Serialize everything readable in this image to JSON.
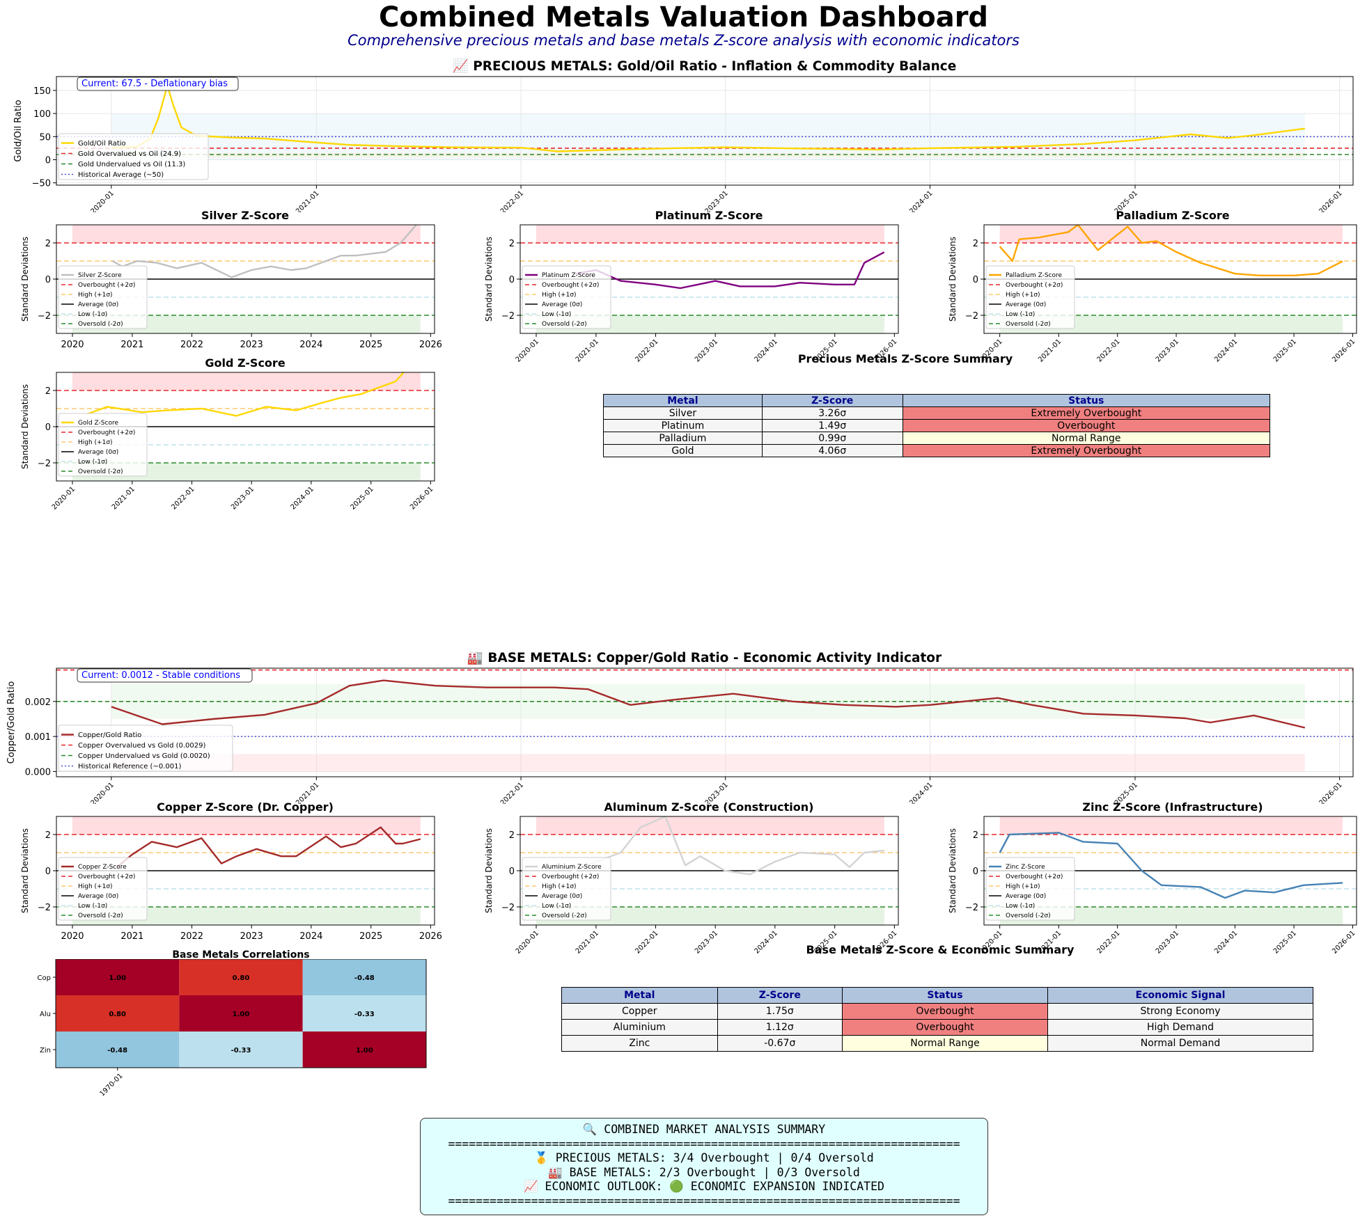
{
  "header": {
    "title": "Combined Metals Valuation Dashboard",
    "subtitle": "Comprehensive precious metals and base metals Z-score analysis with economic indicators"
  },
  "colors": {
    "gold": "#ffd700",
    "silver": "#c0c0c0",
    "platinum": "#800080",
    "palladium": "#ffa500",
    "copper": "#a52a2a",
    "aluminium": "#d3d3d3",
    "zinc": "#4682b4",
    "overbought": "#f08080",
    "normal": "#ffffe0",
    "neutral": "#f5f5f5",
    "header_bg": "#b0c4de",
    "summary_bg": "#e0ffff"
  },
  "zscore_legend": {
    "overbought": "Overbought (+2σ)",
    "high": "High (+1σ)",
    "average": "Average (0σ)",
    "low": "Low (-1σ)",
    "oversold": "Oversold (-2σ)"
  },
  "zscore_axis": {
    "ylabel": "Standard Deviations",
    "yticks": [
      "2",
      "0",
      "−2"
    ],
    "ylim": [
      -3,
      3
    ]
  },
  "chart_data": [
    {
      "id": "gold-oil",
      "type": "line",
      "title": "📈 PRECIOUS METALS: Gold/Oil Ratio - Inflation & Commodity Balance",
      "ylabel": "Gold/Oil Ratio",
      "ylim": [
        -55,
        180
      ],
      "yticks": [
        "150",
        "100",
        "50",
        "0",
        "−50"
      ],
      "xticks": [
        "2020-01",
        "2021-01",
        "2022-01",
        "2023-01",
        "2024-01",
        "2025-01",
        "2026-01"
      ],
      "annotation": "Current: 67.5 - Deflationary bias",
      "legend": [
        "Gold/Oil Ratio",
        "Gold Overvalued vs Oil (24.9)",
        "Gold Undervalued vs Oil (11.3)",
        "Historical Average (~50)"
      ],
      "ref_lines": {
        "overvalued": 24.9,
        "undervalued": 11.3,
        "average": 50
      },
      "bands": [
        [
          0,
          100
        ],
        [
          5,
          15
        ]
      ],
      "series": [
        {
          "name": "Gold/Oil Ratio",
          "x": [
            "2020-01-01",
            "2020-02-15",
            "2020-03-10",
            "2020-03-25",
            "2020-04-10",
            "2020-04-20",
            "2020-05-05",
            "2020-06-01",
            "2020-08-01",
            "2020-10-01",
            "2020-12-01",
            "2021-03-01",
            "2021-06-01",
            "2021-09-01",
            "2022-01-01",
            "2022-03-08",
            "2022-06-01",
            "2022-10-01",
            "2023-01-01",
            "2023-06-01",
            "2023-10-01",
            "2024-01-01",
            "2024-06-01",
            "2024-10-01",
            "2025-01-01",
            "2025-04-10",
            "2025-06-15",
            "2025-08-01",
            "2025-10-31"
          ],
          "y": [
            26,
            28,
            45,
            90,
            160,
            120,
            70,
            52,
            48,
            46,
            40,
            32,
            29,
            27,
            26,
            18,
            21,
            25,
            27,
            24,
            22,
            25,
            28,
            34,
            42,
            55,
            47,
            53,
            67.5
          ]
        }
      ]
    },
    {
      "id": "silver-z",
      "type": "line",
      "title": "Silver Z-Score",
      "xticks": [
        "2020",
        "2021",
        "2022",
        "2023",
        "2024",
        "2025",
        "2026"
      ],
      "series": [
        {
          "name": "Silver Z-Score",
          "x": [
            "2020-09-01",
            "2020-11-01",
            "2021-02-01",
            "2021-06-01",
            "2021-10-01",
            "2022-03-01",
            "2022-09-01",
            "2023-01-01",
            "2023-05-01",
            "2023-09-01",
            "2023-12-01",
            "2024-04-01",
            "2024-07-01",
            "2024-10-01",
            "2025-01-01",
            "2025-04-01",
            "2025-07-01",
            "2025-10-31"
          ],
          "y": [
            1.0,
            0.7,
            1.0,
            0.9,
            0.6,
            0.9,
            0.1,
            0.5,
            0.7,
            0.5,
            0.6,
            1.0,
            1.3,
            1.3,
            1.4,
            1.5,
            2.0,
            3.26
          ]
        }
      ]
    },
    {
      "id": "platinum-z",
      "type": "line",
      "title": "Platinum Z-Score",
      "xticks": [
        "2020-01",
        "2021-01",
        "2022-01",
        "2023-01",
        "2024-01",
        "2025-01",
        "2026-01"
      ],
      "series": [
        {
          "name": "Platinum Z-Score",
          "x": [
            "2020-09-01",
            "2021-01-01",
            "2021-06-01",
            "2022-01-01",
            "2022-06-01",
            "2023-01-01",
            "2023-06-01",
            "2024-01-01",
            "2024-06-01",
            "2025-01-01",
            "2025-05-01",
            "2025-07-01",
            "2025-10-31"
          ],
          "y": [
            0.3,
            0.5,
            -0.1,
            -0.3,
            -0.5,
            -0.1,
            -0.4,
            -0.4,
            -0.2,
            -0.3,
            -0.3,
            0.9,
            1.49
          ]
        }
      ]
    },
    {
      "id": "palladium-z",
      "type": "line",
      "title": "Palladium Z-Score",
      "xticks": [
        "2020-01",
        "2021-01",
        "2022-01",
        "2023-01",
        "2024-01",
        "2025-01",
        "2026-01"
      ],
      "series": [
        {
          "name": "Palladium Z-Score",
          "x": [
            "2020-01-01",
            "2020-03-20",
            "2020-05-01",
            "2020-09-01",
            "2021-03-01",
            "2021-05-01",
            "2021-09-01",
            "2022-03-05",
            "2022-06-01",
            "2022-09-01",
            "2023-01-01",
            "2023-06-01",
            "2024-01-01",
            "2024-06-01",
            "2025-01-01",
            "2025-06-01",
            "2025-10-31"
          ],
          "y": [
            1.8,
            1.0,
            2.2,
            2.3,
            2.6,
            3.0,
            1.6,
            2.9,
            2.0,
            2.1,
            1.5,
            0.9,
            0.3,
            0.2,
            0.2,
            0.3,
            0.99
          ]
        }
      ]
    },
    {
      "id": "gold-z",
      "type": "line",
      "title": "Gold Z-Score",
      "xticks": [
        "2020-01",
        "2021-01",
        "2022-01",
        "2023-01",
        "2024-01",
        "2025-01",
        "2026-01"
      ],
      "series": [
        {
          "name": "Gold Z-Score",
          "x": [
            "2020-04-01",
            "2020-08-01",
            "2021-03-01",
            "2021-08-01",
            "2022-03-01",
            "2022-10-01",
            "2023-04-01",
            "2023-10-01",
            "2024-03-01",
            "2024-07-01",
            "2024-11-01",
            "2025-03-01",
            "2025-06-01",
            "2025-10-31"
          ],
          "y": [
            0.7,
            1.1,
            0.8,
            0.9,
            1.0,
            0.6,
            1.1,
            0.9,
            1.3,
            1.6,
            1.8,
            2.2,
            2.5,
            4.06
          ]
        }
      ]
    },
    {
      "id": "copper-gold",
      "type": "line",
      "title": "🏭 BASE METALS: Copper/Gold Ratio - Economic Activity Indicator",
      "ylabel": "Copper/Gold Ratio",
      "ylim": [
        -0.00015,
        0.00295
      ],
      "yticks": [
        "0.002",
        "0.001",
        "0.000"
      ],
      "xticks": [
        "2020-01",
        "2021-01",
        "2022-01",
        "2023-01",
        "2024-01",
        "2025-01",
        "2026-01"
      ],
      "annotation": "Current: 0.0012 - Stable conditions",
      "legend": [
        "Copper/Gold Ratio",
        "Copper Overvalued vs Gold (0.0029)",
        "Copper Undervalued vs Gold (0.0020)",
        "Historical Reference (~0.001)"
      ],
      "ref_lines": {
        "overvalued": 0.0029,
        "undervalued": 0.002,
        "reference": 0.001
      },
      "bands": [
        [
          0.0015,
          0.0025
        ],
        [
          0,
          0.0005
        ]
      ],
      "series": [
        {
          "name": "Copper/Gold Ratio",
          "x": [
            "2020-01-01",
            "2020-02-15",
            "2020-04-01",
            "2020-07-01",
            "2020-10-01",
            "2021-01-01",
            "2021-03-01",
            "2021-05-01",
            "2021-08-01",
            "2021-11-01",
            "2022-03-01",
            "2022-05-01",
            "2022-07-15",
            "2022-10-01",
            "2023-01-15",
            "2023-05-01",
            "2023-08-01",
            "2023-11-01",
            "2024-01-01",
            "2024-05-01",
            "2024-07-01",
            "2024-10-01",
            "2025-01-01",
            "2025-04-01",
            "2025-05-15",
            "2025-08-01",
            "2025-10-31"
          ],
          "y": [
            0.00185,
            0.0016,
            0.00135,
            0.0015,
            0.00162,
            0.00195,
            0.00245,
            0.0026,
            0.00245,
            0.0024,
            0.0024,
            0.00235,
            0.0019,
            0.00205,
            0.00222,
            0.002,
            0.0019,
            0.00185,
            0.0019,
            0.0021,
            0.0019,
            0.00165,
            0.0016,
            0.00152,
            0.0014,
            0.0016,
            0.00125
          ]
        }
      ]
    },
    {
      "id": "copper-z",
      "type": "line",
      "title": "Copper Z-Score (Dr. Copper)",
      "xticks": [
        "2020",
        "2021",
        "2022",
        "2023",
        "2024",
        "2025",
        "2026"
      ],
      "series": [
        {
          "name": "Copper Z-Score",
          "x": [
            "2020-10-01",
            "2021-01-01",
            "2021-05-01",
            "2021-10-01",
            "2022-03-01",
            "2022-07-01",
            "2022-10-01",
            "2023-02-01",
            "2023-07-01",
            "2023-10-01",
            "2024-04-01",
            "2024-07-01",
            "2024-10-01",
            "2025-03-01",
            "2025-06-01",
            "2025-07-15",
            "2025-10-31"
          ],
          "y": [
            0.2,
            0.9,
            1.6,
            1.3,
            1.8,
            0.4,
            0.8,
            1.2,
            0.8,
            0.8,
            1.9,
            1.3,
            1.5,
            2.4,
            1.5,
            1.5,
            1.75
          ]
        }
      ]
    },
    {
      "id": "aluminium-z",
      "type": "line",
      "title": "Aluminum Z-Score (Construction)",
      "xticks": [
        "2020-01",
        "2021-01",
        "2022-01",
        "2023-01",
        "2024-01",
        "2025-01",
        "2026-01"
      ],
      "series": [
        {
          "name": "Aluminium Z-Score",
          "x": [
            "2020-06-01",
            "2021-01-01",
            "2021-06-01",
            "2021-10-01",
            "2022-03-01",
            "2022-07-01",
            "2022-10-01",
            "2023-03-01",
            "2023-08-01",
            "2024-01-01",
            "2024-06-01",
            "2025-01-01",
            "2025-04-01",
            "2025-07-01",
            "2025-10-31"
          ],
          "y": [
            -0.3,
            0.5,
            1.0,
            2.4,
            3.0,
            0.3,
            0.8,
            0.0,
            -0.2,
            0.5,
            1.0,
            0.9,
            0.2,
            1.0,
            1.12
          ]
        }
      ]
    },
    {
      "id": "zinc-z",
      "type": "line",
      "title": "Zinc Z-Score (Infrastructure)",
      "xticks": [
        "2020-01",
        "2021-01",
        "2022-01",
        "2023-01",
        "2024-01",
        "2025-01",
        "2026-01"
      ],
      "series": [
        {
          "name": "Zinc Z-Score",
          "x": [
            "2020-01-01",
            "2020-03-01",
            "2021-01-01",
            "2021-06-01",
            "2022-01-01",
            "2022-06-01",
            "2022-10-01",
            "2023-06-01",
            "2023-11-01",
            "2024-03-01",
            "2024-09-01",
            "2025-03-01",
            "2025-10-31"
          ],
          "y": [
            1.0,
            2.0,
            2.1,
            1.6,
            1.5,
            0.0,
            -0.8,
            -0.9,
            -1.5,
            -1.1,
            -1.2,
            -0.8,
            -0.67
          ]
        }
      ]
    },
    {
      "id": "base-corr",
      "type": "heatmap",
      "title": "Base Metals Correlations",
      "rows": [
        "Cop",
        "Alu",
        "Zin"
      ],
      "xtick": "1970-01",
      "values": [
        [
          1.0,
          0.8,
          -0.48
        ],
        [
          0.8,
          1.0,
          -0.33
        ],
        [
          -0.48,
          -0.33,
          1.0
        ]
      ],
      "labels": [
        [
          "1.00",
          "0.80",
          "-0.48"
        ],
        [
          "0.80",
          "1.00",
          "-0.33"
        ],
        [
          "-0.48",
          "-0.33",
          "1.00"
        ]
      ]
    }
  ],
  "precious_table": {
    "title": "Precious Metals Z-Score Summary",
    "headers": [
      "Metal",
      "Z-Score",
      "Status"
    ],
    "rows": [
      [
        "Silver",
        "3.26σ",
        "Extremely Overbought"
      ],
      [
        "Platinum",
        "1.49σ",
        "Overbought"
      ],
      [
        "Palladium",
        "0.99σ",
        "Normal Range"
      ],
      [
        "Gold",
        "4.06σ",
        "Extremely Overbought"
      ]
    ],
    "status_colors": [
      "#f08080",
      "#f08080",
      "#ffffe0",
      "#f08080"
    ]
  },
  "base_table": {
    "title": "Base Metals Z-Score & Economic Summary",
    "headers": [
      "Metal",
      "Z-Score",
      "Status",
      "Economic Signal"
    ],
    "rows": [
      [
        "Copper",
        "1.75σ",
        "Overbought",
        "Strong Economy"
      ],
      [
        "Aluminium",
        "1.12σ",
        "Overbought",
        "High Demand"
      ],
      [
        "Zinc",
        "-0.67σ",
        "Normal Range",
        "Normal Demand"
      ]
    ],
    "status_colors": [
      "#f08080",
      "#f08080",
      "#ffffe0"
    ]
  },
  "summary": {
    "title": "🔍 COMBINED MARKET ANALYSIS SUMMARY",
    "rule": "==========================================================================",
    "precious": "🥇 PRECIOUS METALS: 3/4 Overbought | 0/4 Oversold",
    "base": "🏭 BASE METALS: 2/3 Overbought | 0/3 Oversold",
    "outlook": "📈 ECONOMIC OUTLOOK: 🟢 ECONOMIC EXPANSION INDICATED"
  }
}
